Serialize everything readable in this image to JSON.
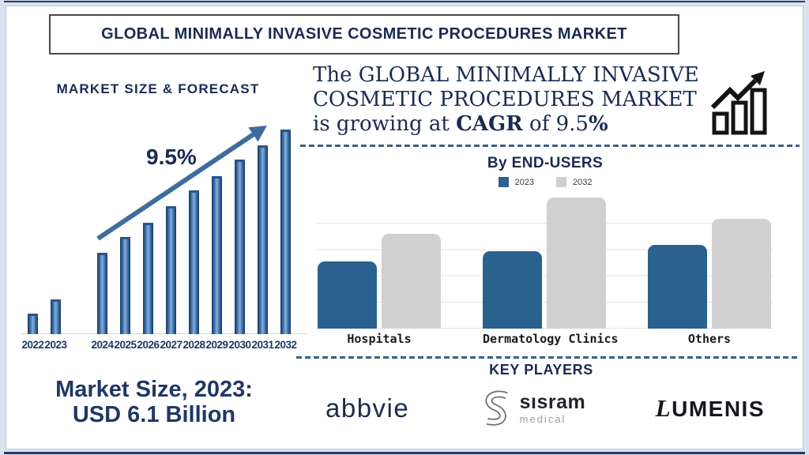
{
  "colors": {
    "navy_text": "#1b2a52",
    "steel_arrow": "#3e6d9c",
    "bar_blue_2023": "#2a618f",
    "bar_gray_2032": "#d0d0d0",
    "frame_light_blue": "#d9e3f0",
    "dashed_separator": "#3b5f86"
  },
  "title_banner": "GLOBAL MINIMALLY INVASIVE COSMETIC PROCEDURES MARKET",
  "forecast": {
    "heading": "MARKET SIZE & FORECAST",
    "cagr_annotation": "9.5%",
    "note_line1": "Market Size, 2023:",
    "note_line2": "USD 6.1 Billion"
  },
  "statement": {
    "line1": "The GLOBAL MINIMALLY INVASIVE",
    "line2": "COSMETIC PROCEDURES MARKET",
    "line3_pre": "is growing at ",
    "line3_cagr": "CAGR",
    "line3_mid": " of 9.5",
    "line3_pct": "%"
  },
  "end_users": {
    "heading": "By END-USERS"
  },
  "key_players": {
    "heading": "KEY PLAYERS",
    "abbvie": "abbvie",
    "sisram_name": "sısram",
    "sisram_sub": "medical",
    "lumenis_first": "L",
    "lumenis_rest": "UMENIS"
  },
  "chart_data": [
    {
      "type": "bar",
      "title": "MARKET SIZE & FORECAST",
      "x": [
        "2022",
        "2023",
        "2024",
        "2025",
        "2026",
        "2027",
        "2028",
        "2029",
        "2030",
        "2031",
        "2032"
      ],
      "values_relative_pct_of_max": [
        9,
        16,
        39,
        47,
        54,
        62,
        70,
        77,
        85,
        92,
        100
      ],
      "annotation": "9.5%",
      "xlabel": "",
      "ylabel": "",
      "axis_values_shown": false,
      "grid": false,
      "bar_color": "#3a6ea5"
    },
    {
      "type": "bar",
      "title": "By END-USERS",
      "categories": [
        "Hospitals",
        "Dermatology Clinics",
        "Others"
      ],
      "series": [
        {
          "name": "2023",
          "color": "#2a618f",
          "values_relative_pct_of_plot": [
            51,
            59,
            64
          ]
        },
        {
          "name": "2032",
          "color": "#d0d0d0",
          "values_relative_pct_of_plot": [
            72,
            100,
            84
          ]
        }
      ],
      "legend_position": "top",
      "grid": true,
      "xlabel": "",
      "ylabel": "",
      "axis_values_shown": false
    }
  ]
}
